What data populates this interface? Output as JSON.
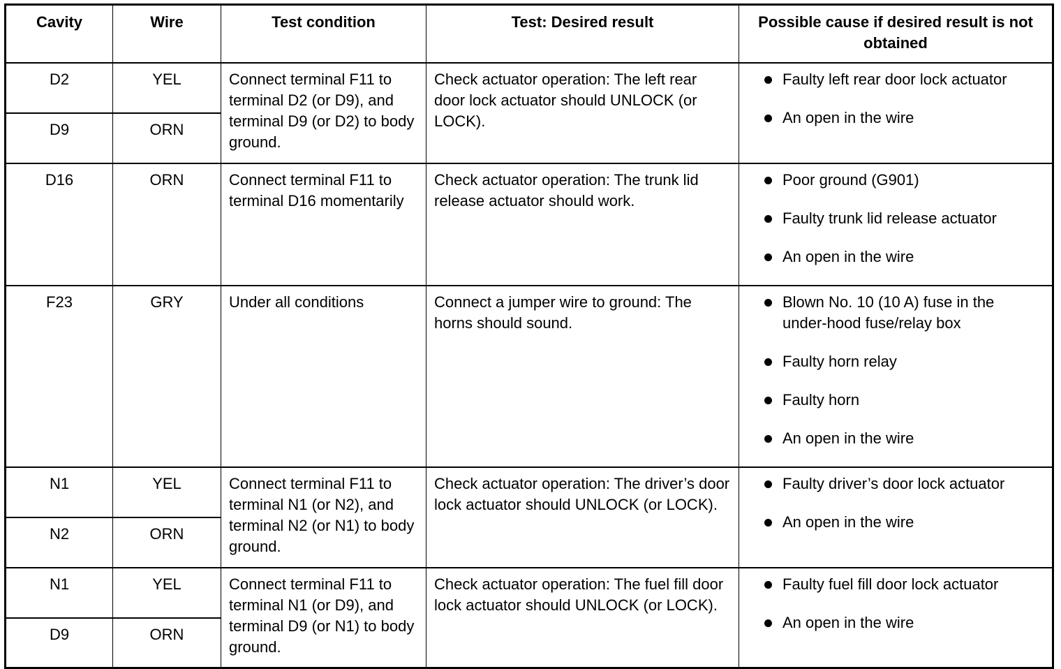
{
  "headers": [
    "Cavity",
    "Wire",
    "Test condition",
    "Test: Desired result",
    "Possible cause if desired result is not obtained"
  ],
  "groups": [
    {
      "cavities": [
        {
          "cavity": "D2",
          "wire": "YEL"
        },
        {
          "cavity": "D9",
          "wire": "ORN"
        }
      ],
      "test_condition": "Connect terminal F11 to terminal D2 (or D9), and terminal D9 (or D2) to body ground.",
      "desired_result": "Check actuator operation: The left rear door lock actuator should UNLOCK (or LOCK).",
      "causes": [
        "Faulty left rear door lock actuator",
        "An open in the wire"
      ]
    },
    {
      "cavities": [
        {
          "cavity": "D16",
          "wire": "ORN"
        }
      ],
      "test_condition": "Connect terminal F11 to terminal D16 momentarily",
      "desired_result": "Check actuator operation: The trunk lid release actuator should work.",
      "causes": [
        "Poor ground (G901)",
        "Faulty trunk lid release actuator",
        "An open in the wire"
      ]
    },
    {
      "cavities": [
        {
          "cavity": "F23",
          "wire": "GRY"
        }
      ],
      "test_condition": "Under all conditions",
      "desired_result": "Connect a jumper wire to ground: The horns should sound.",
      "causes": [
        "Blown No. 10 (10 A) fuse in the under-hood fuse/relay box",
        "Faulty horn relay",
        "Faulty horn",
        "An open in the wire"
      ]
    },
    {
      "cavities": [
        {
          "cavity": "N1",
          "wire": "YEL"
        },
        {
          "cavity": "N2",
          "wire": "ORN"
        }
      ],
      "test_condition": "Connect terminal F11 to terminal N1 (or N2), and terminal N2 (or N1) to body ground.",
      "desired_result": "Check actuator operation: The driver’s door lock actuator should UNLOCK (or LOCK).",
      "causes": [
        "Faulty driver’s door lock actuator",
        "An open in the wire"
      ]
    },
    {
      "cavities": [
        {
          "cavity": "N1",
          "wire": "YEL"
        },
        {
          "cavity": "D9",
          "wire": "ORN"
        }
      ],
      "test_condition": "Connect terminal F11 to terminal N1 (or D9), and terminal D9 (or N1) to body ground.",
      "desired_result": "Check actuator operation: The fuel fill door lock actuator should UNLOCK (or LOCK).",
      "causes": [
        "Faulty fuel fill door lock actuator",
        "An open in the wire"
      ]
    }
  ]
}
